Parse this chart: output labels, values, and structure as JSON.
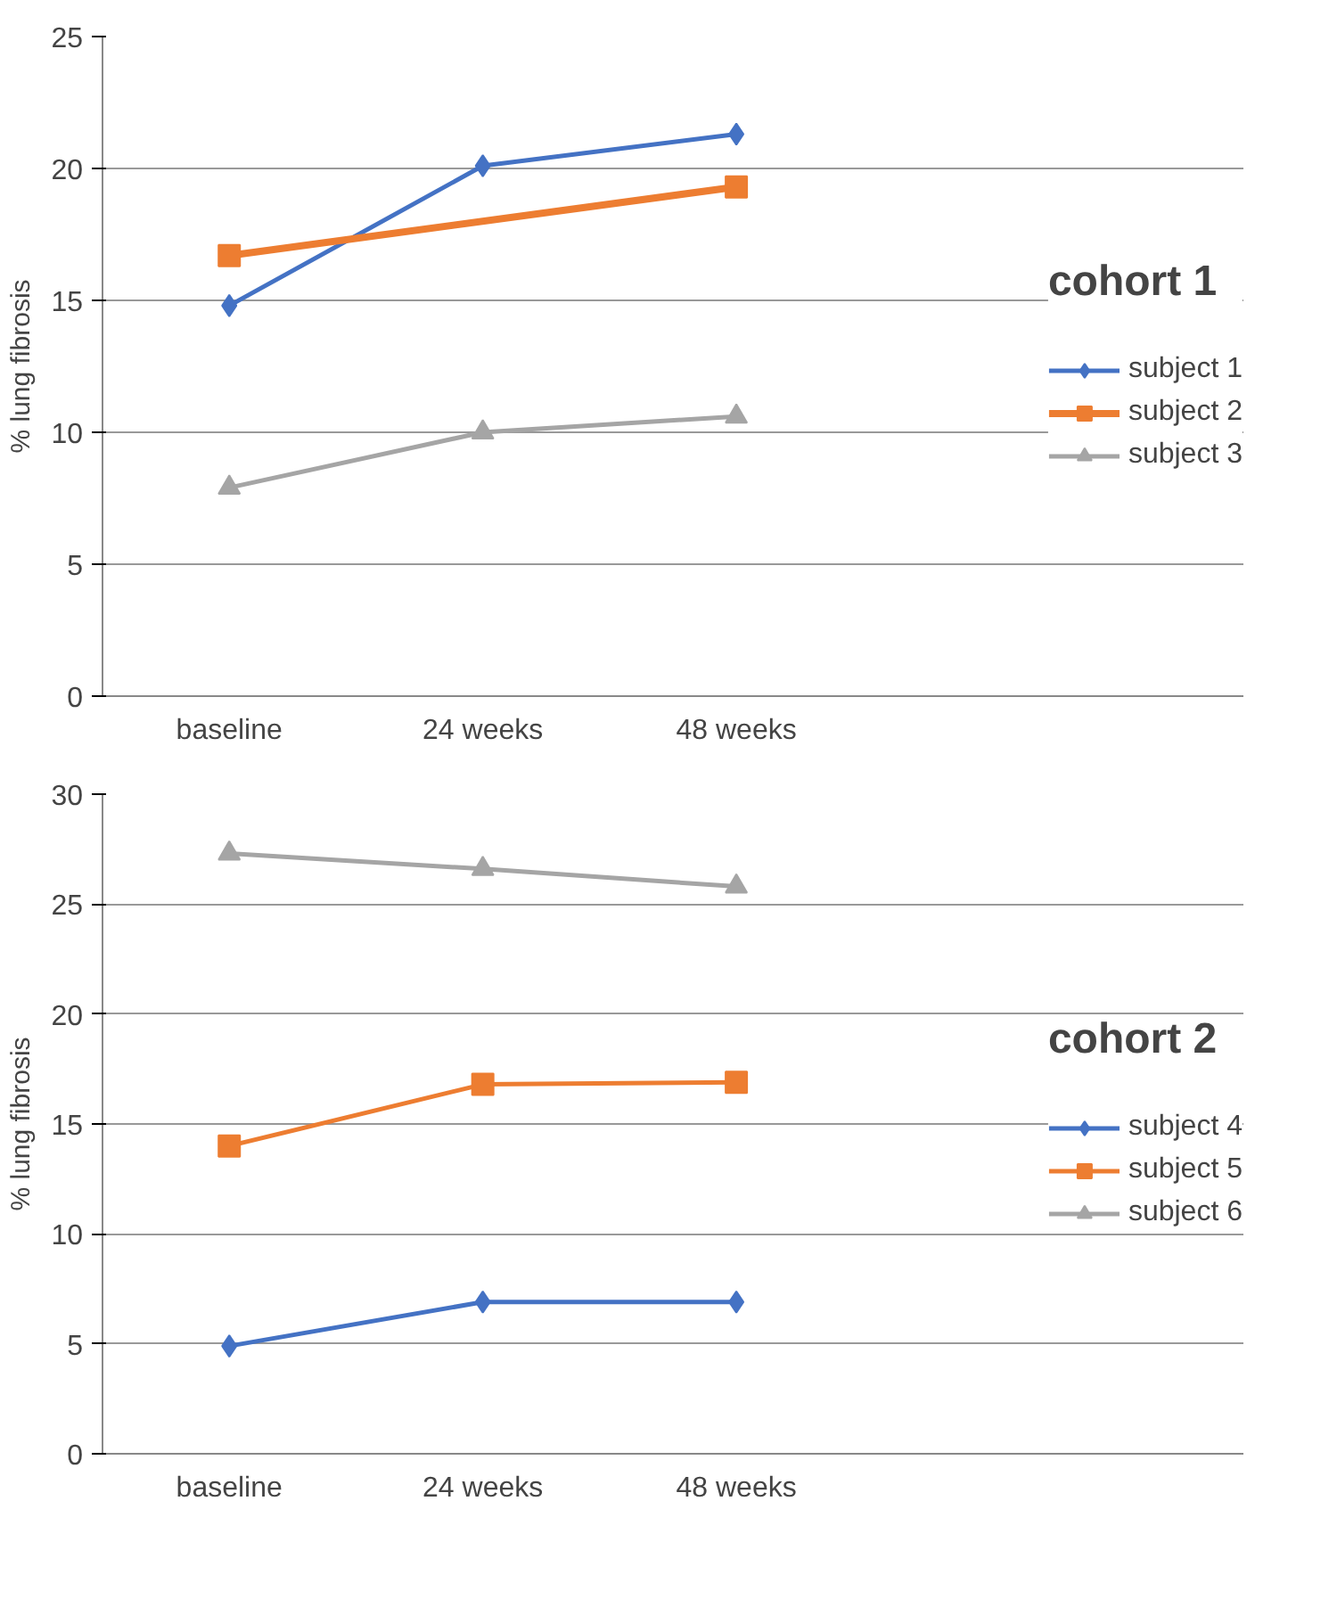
{
  "chart_data": [
    {
      "type": "line",
      "legend_title": "cohort 1",
      "ylabel": "% lung fibrosis",
      "categories": [
        "baseline",
        "24 weeks",
        "48 weeks"
      ],
      "ylim": [
        0,
        25
      ],
      "yticks": [
        0,
        5,
        10,
        15,
        20,
        25
      ],
      "grid": "y",
      "legend": "right",
      "series": [
        {
          "name": "subject 1",
          "color": "#4472c4",
          "marker": "diamond",
          "values": [
            14.8,
            20.1,
            21.3
          ]
        },
        {
          "name": "subject 2",
          "color": "#ed7d31",
          "marker": "square",
          "values": [
            16.7,
            null,
            19.3
          ]
        },
        {
          "name": "subject 3",
          "color": "#a5a5a5",
          "marker": "triangle",
          "values": [
            7.9,
            10.0,
            10.6
          ]
        }
      ]
    },
    {
      "type": "line",
      "legend_title": "cohort 2",
      "ylabel": "% lung fibrosis",
      "categories": [
        "baseline",
        "24 weeks",
        "48 weeks"
      ],
      "ylim": [
        0,
        30
      ],
      "yticks": [
        0,
        5,
        10,
        15,
        20,
        25,
        30
      ],
      "grid": "y",
      "legend": "right",
      "series": [
        {
          "name": "subject 4",
          "color": "#4472c4",
          "marker": "diamond",
          "values": [
            4.9,
            6.9,
            6.9
          ]
        },
        {
          "name": "subject 5",
          "color": "#ed7d31",
          "marker": "square",
          "values": [
            14.0,
            16.8,
            16.9
          ]
        },
        {
          "name": "subject 6",
          "color": "#a5a5a5",
          "marker": "triangle",
          "values": [
            27.3,
            26.6,
            25.8
          ]
        }
      ]
    }
  ]
}
